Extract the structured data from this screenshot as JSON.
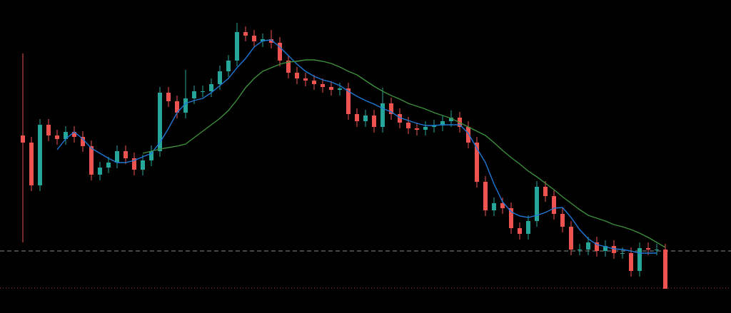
{
  "chart_data": {
    "type": "candlestick",
    "ylim": [
      0,
      439
    ],
    "up_color": "#26a69a",
    "down_color": "#ef5350",
    "open": [
      249,
      239,
      179,
      264,
      249,
      244,
      254,
      247,
      234,
      194,
      204,
      211,
      227,
      217,
      201,
      214,
      227,
      309,
      297,
      281,
      301,
      311,
      311,
      321,
      339,
      354,
      394,
      389,
      381,
      384,
      379,
      354,
      337,
      329,
      326,
      321,
      317,
      313,
      315,
      279,
      269,
      277,
      261,
      294,
      279,
      267,
      259,
      257,
      261,
      263,
      269,
      274,
      261,
      239,
      184,
      144,
      154,
      147,
      119,
      111,
      129,
      177,
      164,
      139,
      121,
      89,
      89,
      99,
      87,
      94,
      84,
      84,
      59,
      91,
      89,
      89
    ],
    "high": [
      364,
      247,
      272,
      272,
      257,
      262,
      262,
      255,
      242,
      212,
      219,
      235,
      235,
      225,
      222,
      235,
      317,
      317,
      305,
      341,
      319,
      319,
      329,
      347,
      362,
      407,
      402,
      397,
      392,
      397,
      387,
      362,
      345,
      337,
      334,
      329,
      325,
      323,
      323,
      287,
      285,
      285,
      316,
      302,
      287,
      275,
      267,
      269,
      271,
      277,
      284,
      282,
      269,
      247,
      192,
      162,
      162,
      155,
      127,
      137,
      185,
      185,
      172,
      147,
      129,
      97,
      107,
      107,
      102,
      102,
      92,
      92,
      99,
      99,
      97,
      97
    ],
    "low": [
      99,
      171,
      171,
      241,
      236,
      236,
      239,
      226,
      186,
      186,
      196,
      203,
      209,
      193,
      193,
      206,
      219,
      289,
      273,
      273,
      293,
      303,
      303,
      313,
      331,
      346,
      381,
      373,
      373,
      371,
      346,
      329,
      321,
      318,
      313,
      309,
      305,
      305,
      271,
      261,
      261,
      253,
      253,
      271,
      259,
      251,
      249,
      249,
      253,
      255,
      261,
      253,
      231,
      176,
      136,
      136,
      139,
      111,
      103,
      103,
      121,
      156,
      131,
      113,
      81,
      81,
      81,
      79,
      79,
      76,
      76,
      51,
      51,
      81,
      81,
      34
    ],
    "close": [
      239,
      179,
      264,
      249,
      244,
      254,
      247,
      234,
      194,
      204,
      211,
      227,
      217,
      201,
      214,
      227,
      309,
      297,
      281,
      301,
      311,
      311,
      321,
      339,
      354,
      394,
      389,
      381,
      384,
      379,
      354,
      337,
      329,
      326,
      321,
      317,
      313,
      315,
      279,
      269,
      277,
      261,
      294,
      279,
      267,
      259,
      257,
      261,
      263,
      269,
      274,
      261,
      239,
      184,
      144,
      154,
      147,
      119,
      111,
      129,
      177,
      164,
      139,
      121,
      89,
      89,
      99,
      87,
      94,
      84,
      84,
      59,
      91,
      89,
      89,
      34
    ],
    "series": [
      {
        "color": "#1e78d6",
        "values": [
          null,
          null,
          null,
          null,
          229,
          244,
          254,
          244,
          231,
          224,
          217,
          211,
          211,
          214,
          219,
          224,
          239,
          259,
          281,
          294,
          298,
          301,
          309,
          319,
          329,
          344,
          357,
          373,
          382,
          383,
          373,
          361,
          349,
          339,
          332,
          327,
          324,
          319,
          311,
          304,
          298,
          293,
          287,
          282,
          274,
          270,
          266,
          263,
          263,
          264,
          264,
          264,
          252,
          231,
          211,
          181,
          156,
          142,
          136,
          134,
          137,
          141,
          147,
          148,
          134,
          117,
          104,
          96,
          93,
          90,
          89,
          87,
          84,
          84,
          84,
          null
        ]
      },
      {
        "color": "#3d8f3d",
        "values": [
          null,
          null,
          null,
          null,
          null,
          null,
          null,
          null,
          null,
          null,
          null,
          null,
          null,
          null,
          224,
          227,
          230,
          232,
          234,
          237,
          246,
          255,
          264,
          273,
          284,
          299,
          316,
          329,
          339,
          344,
          349,
          352,
          353,
          355,
          355,
          353,
          350,
          345,
          339,
          334,
          326,
          318,
          311,
          305,
          300,
          294,
          290,
          286,
          281,
          277,
          273,
          267,
          261,
          255,
          249,
          239,
          228,
          218,
          209,
          199,
          191,
          182,
          173,
          163,
          154,
          145,
          137,
          133,
          129,
          124,
          121,
          117,
          112,
          106,
          99,
          92
        ]
      }
    ],
    "levels": [
      {
        "value": 87,
        "color": "#8a8a8a",
        "dash": "6 4"
      },
      {
        "value": 35,
        "color": "#b0443f",
        "dash": "1 3"
      }
    ]
  }
}
